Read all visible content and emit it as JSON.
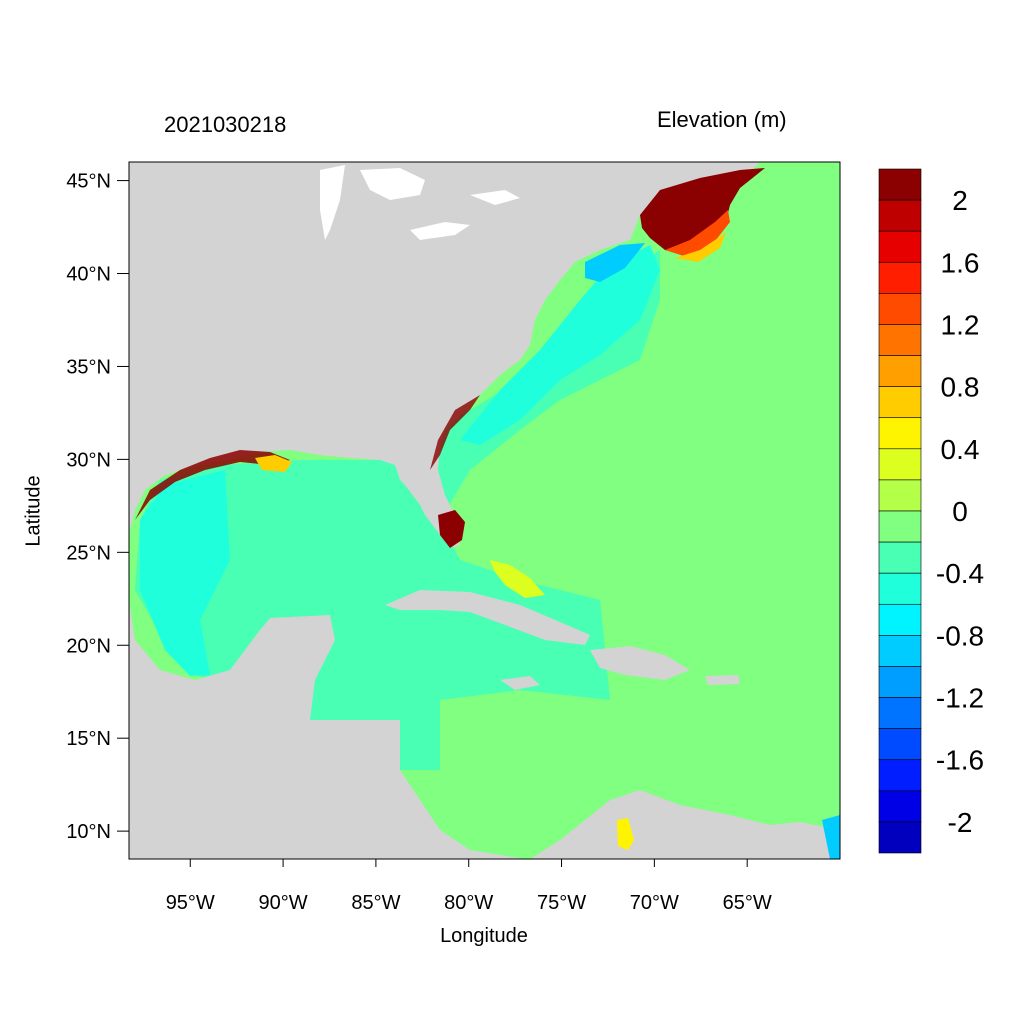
{
  "title": "2021030218",
  "variable_label": "Elevation (m)",
  "axes": {
    "xlabel": "Longitude",
    "ylabel": "Latitude",
    "x_ticks": [
      "95°W",
      "90°W",
      "85°W",
      "80°W",
      "75°W",
      "70°W",
      "65°W"
    ],
    "y_ticks": [
      "45°N",
      "40°N",
      "35°N",
      "30°N",
      "25°N",
      "20°N",
      "15°N",
      "10°N"
    ],
    "lon_range": [
      -98.3,
      -60.0
    ],
    "lat_range": [
      8.5,
      46.0
    ]
  },
  "colorbar": {
    "labels": [
      "2",
      "1.6",
      "1.2",
      "0.8",
      "0.4",
      "0",
      "-0.4",
      "-0.8",
      "-1.2",
      "-1.6",
      "-2"
    ],
    "colors_top_to_bottom": [
      "#8b0000",
      "#be0000",
      "#e60000",
      "#ff1e00",
      "#ff4b00",
      "#ff7300",
      "#ff9f00",
      "#ffcc00",
      "#fff400",
      "#dcff20",
      "#b4ff48",
      "#80ff80",
      "#48ffb4",
      "#20ffdc",
      "#00f4ff",
      "#00ccff",
      "#009fff",
      "#0073ff",
      "#004bff",
      "#001eff",
      "#0000e6",
      "#0000be"
    ]
  },
  "colors": {
    "land": "#d3d3d3",
    "ocean_zero": "#80ff80",
    "gulf_slightly_negative": "#48ffb4",
    "shelf_negative": "#20ffdc",
    "surge_positive": "#8b0000"
  }
}
